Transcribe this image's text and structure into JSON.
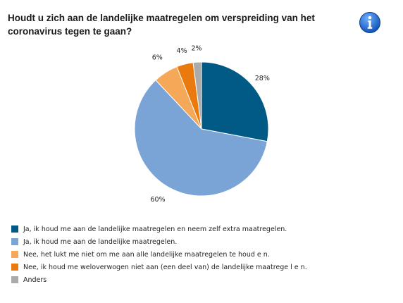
{
  "title": "Houdt u zich aan de landelijke maatregelen om verspreiding van het coronavirus tegen te gaan?",
  "info_icon": "info-icon",
  "chart_data": {
    "type": "pie",
    "start": "12 o'clock",
    "direction": "clockwise",
    "slices": [
      {
        "label": "Ja, ik houd me aan de landelijke maatregelen en neem zelf extra maatregelen.",
        "value": 28,
        "value_label": "28%",
        "color": "#005A85"
      },
      {
        "label": "Ja, ik houd me aan de landelijke maatregelen.",
        "value": 60,
        "value_label": "60%",
        "color": "#7AA3D6"
      },
      {
        "label": "Nee, het lukt me niet om me aan alle landelijke maatregelen te houd e n.",
        "value": 6,
        "value_label": "6%",
        "color": "#F5A858"
      },
      {
        "label": "Nee, ik houd me weloverwogen niet aan (een deel van) de landelijke maatrege l e n.",
        "value": 4,
        "value_label": "4%",
        "color": "#EB7A0E"
      },
      {
        "label": "Anders",
        "value": 2,
        "value_label": "2%",
        "color": "#ABABAB"
      }
    ]
  }
}
